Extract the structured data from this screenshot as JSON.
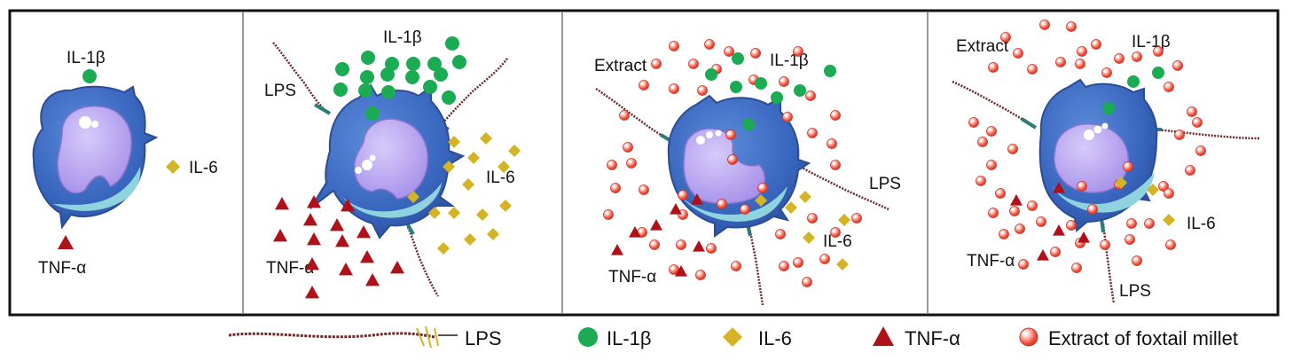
{
  "panels": [
    {
      "cell": "resting",
      "lps": false,
      "extract": false,
      "labels": {
        "il1b": "IL-1β",
        "il6": "IL-6",
        "tnfa": "TNF-α"
      }
    },
    {
      "cell": "activated",
      "lps": true,
      "extract": false,
      "labels": {
        "lps": "LPS",
        "il1b": "IL-1β",
        "il6": "IL-6",
        "tnfa": "TNF-α"
      }
    },
    {
      "cell": "activated",
      "lps": true,
      "extract": true,
      "labels": {
        "extract": "Extract",
        "lps": "LPS",
        "il1b": "IL-1β",
        "il6": "IL-6",
        "tnfa": "TNF-α"
      }
    },
    {
      "cell": "activated",
      "lps": true,
      "extract": true,
      "labels": {
        "extract": "Extract",
        "lps": "LPS",
        "il1b": "IL-1β",
        "il6": "IL-6",
        "tnfa": "TNF-α"
      }
    }
  ],
  "legend": [
    {
      "icon": "lps-strand-icon",
      "label": "LPS"
    },
    {
      "icon": "il1b-circle-icon",
      "label": "IL-1β"
    },
    {
      "icon": "il6-diamond-icon",
      "label": "IL-6"
    },
    {
      "icon": "tnfa-triangle-icon",
      "label": "TNF-α"
    },
    {
      "icon": "extract-sphere-icon",
      "label": "Extract of foxtail millet"
    }
  ],
  "colors": {
    "il1b": "#1aab53",
    "il6": "#d4b324",
    "tnfa": "#b01017",
    "extract": "#f2604c",
    "cell_body": "#3f6fc4",
    "nucleus": "#b8a4ef",
    "cytoplasm_rim": "#8fd3de"
  }
}
